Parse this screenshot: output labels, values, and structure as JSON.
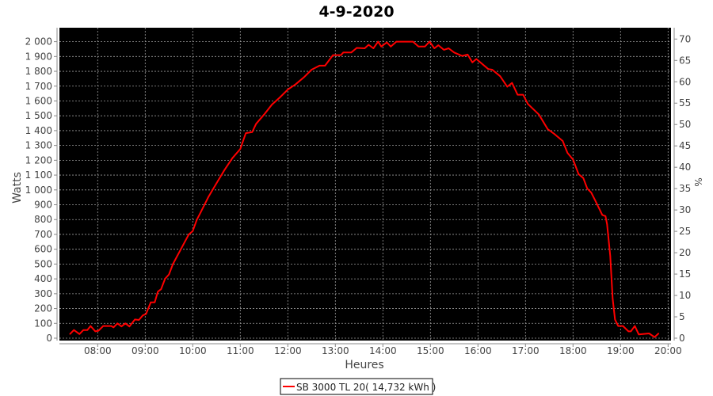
{
  "chart_data": {
    "type": "line",
    "title": "4-9-2020",
    "xlabel": "Heures",
    "ylabel": "Watts",
    "y2label": "%",
    "xlim": [
      "07:11",
      "20:05"
    ],
    "ylim": [
      0,
      2090
    ],
    "y2lim": [
      0,
      72.5
    ],
    "x_ticks": [
      "08:00",
      "09:00",
      "10:00",
      "11:00",
      "12:00",
      "13:00",
      "14:00",
      "15:00",
      "16:00",
      "17:00",
      "18:00",
      "19:00",
      "20:00"
    ],
    "y_ticks": [
      {
        "value": 0,
        "label": "0"
      },
      {
        "value": 100,
        "label": "100"
      },
      {
        "value": 200,
        "label": "200"
      },
      {
        "value": 300,
        "label": "300"
      },
      {
        "value": 400,
        "label": "400"
      },
      {
        "value": 500,
        "label": "500"
      },
      {
        "value": 600,
        "label": "600"
      },
      {
        "value": 700,
        "label": "700"
      },
      {
        "value": 800,
        "label": "800"
      },
      {
        "value": 900,
        "label": "900"
      },
      {
        "value": 1000,
        "label": "1 000"
      },
      {
        "value": 1100,
        "label": "1 100"
      },
      {
        "value": 1200,
        "label": "1 200"
      },
      {
        "value": 1300,
        "label": "1 300"
      },
      {
        "value": 1400,
        "label": "1 400"
      },
      {
        "value": 1500,
        "label": "1 500"
      },
      {
        "value": 1600,
        "label": "1 600"
      },
      {
        "value": 1700,
        "label": "1 700"
      },
      {
        "value": 1800,
        "label": "1 800"
      },
      {
        "value": 1900,
        "label": "1 900"
      },
      {
        "value": 2000,
        "label": "2 000"
      }
    ],
    "y2_ticks": [
      "0",
      "5",
      "10",
      "15",
      "20",
      "25",
      "30",
      "35",
      "40",
      "45",
      "50",
      "55",
      "60",
      "65",
      "70"
    ],
    "grid": true,
    "background": "#000000",
    "grid_color": "#9a9a9a",
    "legend_position": "bottom",
    "series": [
      {
        "name": "SB 3000 TL 20( 14,732 kWh )",
        "color": "#ff0000",
        "x": [
          "07:25",
          "07:30",
          "07:37",
          "07:42",
          "07:47",
          "07:51",
          "07:57",
          "08:01",
          "08:07",
          "08:17",
          "08:20",
          "08:25",
          "08:30",
          "08:35",
          "08:40",
          "08:47",
          "08:52",
          "08:57",
          "09:01",
          "09:07",
          "09:12",
          "09:16",
          "09:20",
          "09:25",
          "09:30",
          "09:35",
          "09:40",
          "09:45",
          "09:50",
          "09:55",
          "10:00",
          "10:05",
          "10:10",
          "10:20",
          "10:30",
          "10:40",
          "10:50",
          "11:00",
          "11:07",
          "11:15",
          "11:20",
          "11:30",
          "11:40",
          "11:50",
          "12:00",
          "12:10",
          "12:20",
          "12:30",
          "12:40",
          "12:47",
          "12:57",
          "13:07",
          "13:10",
          "13:20",
          "13:27",
          "13:37",
          "13:42",
          "13:48",
          "13:54",
          "13:58",
          "14:05",
          "14:10",
          "14:17",
          "14:38",
          "14:45",
          "14:53",
          "14:59",
          "15:05",
          "15:10",
          "15:17",
          "15:23",
          "15:30",
          "15:40",
          "15:47",
          "15:53",
          "15:58",
          "16:13",
          "16:18",
          "16:28",
          "16:37",
          "16:43",
          "16:50",
          "16:57",
          "17:03",
          "17:17",
          "17:28",
          "17:37",
          "17:47",
          "17:53",
          "18:00",
          "18:07",
          "18:13",
          "18:18",
          "18:23",
          "18:28",
          "18:37",
          "18:41",
          "18:43",
          "18:47",
          "18:50",
          "18:53",
          "18:57",
          "19:03",
          "19:10",
          "19:13",
          "19:18",
          "19:23",
          "19:36",
          "19:43",
          "19:48"
        ],
        "values": [
          28,
          55,
          28,
          55,
          55,
          82,
          46,
          50,
          82,
          82,
          73,
          100,
          79,
          100,
          79,
          126,
          123,
          154,
          163,
          242,
          242,
          314,
          330,
          400,
          430,
          500,
          550,
          600,
          650,
          700,
          723,
          797,
          849,
          955,
          1045,
          1134,
          1214,
          1276,
          1383,
          1390,
          1446,
          1508,
          1576,
          1624,
          1677,
          1713,
          1758,
          1811,
          1838,
          1838,
          1909,
          1909,
          1927,
          1927,
          1958,
          1955,
          1979,
          1955,
          2000,
          1967,
          1995,
          1967,
          2000,
          2000,
          1967,
          1967,
          2000,
          1955,
          1976,
          1945,
          1955,
          1927,
          1904,
          1913,
          1860,
          1883,
          1815,
          1811,
          1767,
          1696,
          1722,
          1642,
          1642,
          1580,
          1508,
          1410,
          1375,
          1330,
          1250,
          1205,
          1107,
          1080,
          1009,
          982,
          929,
          831,
          823,
          768,
          555,
          269,
          126,
          82,
          82,
          46,
          46,
          82,
          25,
          32,
          7,
          32
        ]
      }
    ]
  }
}
